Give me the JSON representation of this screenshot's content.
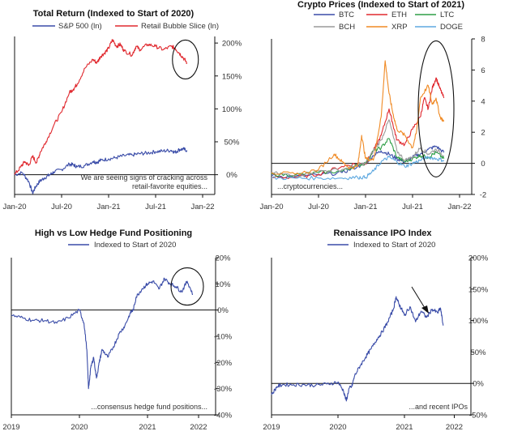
{
  "colors": {
    "blue": "#3A4CA8",
    "red": "#E0282E",
    "green": "#2E9E47",
    "gray": "#9A9A9A",
    "orange": "#F08A24",
    "lightblue": "#5EA8E0",
    "axis": "#111111"
  },
  "chart_data": [
    {
      "id": "total-return",
      "type": "line",
      "title": "Total Return (Indexed to Start of 2020)",
      "legend": [
        "S&P 500 (ln)",
        "Retail Bubble Slice (ln)"
      ],
      "y_axis_side": "right",
      "ylim": [
        -30,
        210
      ],
      "ytick_values": [
        0,
        50,
        100,
        150,
        200
      ],
      "ytick_labels": [
        "0%",
        "50%",
        "100%",
        "150%",
        "200%"
      ],
      "xtick_labels": [
        "Jan-20",
        "Jul-20",
        "Jan-21",
        "Jul-21",
        "Jan-22"
      ],
      "xlim": [
        0,
        24
      ],
      "xtick_positions": [
        0,
        6,
        12,
        18,
        24
      ],
      "annotation": "We are seeing signs of cracking across retail-favorite equities...",
      "highlight": {
        "shape": "ellipse",
        "x": 21.8,
        "y": 175
      },
      "series": [
        {
          "name": "S&P 500 (ln)",
          "color": "blue",
          "x": [
            0,
            1,
            1.8,
            2.3,
            2.7,
            3.2,
            3.8,
            4.5,
            5,
            6,
            7,
            7.5,
            8,
            9,
            10,
            10.5,
            11,
            12,
            13,
            14,
            15,
            16,
            17,
            18,
            19,
            20,
            20.5,
            21,
            21.5,
            22
          ],
          "y": [
            0,
            3,
            -10,
            -28,
            -18,
            -10,
            -5,
            0,
            4,
            8,
            16,
            15,
            12,
            14,
            20,
            19,
            22,
            24,
            26,
            29,
            30,
            32,
            33,
            35,
            36,
            37,
            34,
            38,
            39,
            37
          ]
        },
        {
          "name": "Retail Bubble Slice (ln)",
          "color": "red",
          "x": [
            0,
            0.8,
            1.3,
            1.8,
            2.3,
            2.8,
            3.3,
            4,
            5,
            6,
            7,
            7.5,
            8,
            9,
            10,
            10.5,
            11,
            11.5,
            12,
            12.5,
            13,
            13.5,
            14,
            15,
            15.5,
            16,
            17,
            18,
            19,
            20,
            20.5,
            21,
            21.5,
            22
          ],
          "y": [
            0,
            12,
            20,
            14,
            28,
            18,
            35,
            50,
            75,
            95,
            125,
            130,
            138,
            162,
            175,
            170,
            180,
            185,
            192,
            205,
            195,
            198,
            188,
            182,
            195,
            190,
            198,
            195,
            190,
            195,
            192,
            185,
            178,
            170
          ]
        }
      ]
    },
    {
      "id": "crypto-prices",
      "type": "line",
      "title": "Crypto Prices (Indexed to Start of 2021)",
      "legend": [
        "BTC",
        "ETH",
        "LTC",
        "BCH",
        "XRP",
        "DOGE"
      ],
      "y_axis_side": "right",
      "ylim": [
        -2,
        8
      ],
      "ytick_values": [
        -2,
        0,
        2,
        4,
        6,
        8
      ],
      "ytick_labels": [
        "-2",
        "0",
        "2",
        "4",
        "6",
        "8"
      ],
      "xtick_labels": [
        "Jan-20",
        "Jul-20",
        "Jan-21",
        "Jul-21",
        "Jan-22"
      ],
      "xlim": [
        0,
        24
      ],
      "xtick_positions": [
        0,
        6,
        12,
        18,
        24
      ],
      "annotation": "...cryptocurrencies...",
      "highlight": {
        "shape": "ellipse",
        "x": 21,
        "y": 3.5
      },
      "series": [
        {
          "name": "BTC",
          "color": "blue",
          "x": [
            0,
            3,
            6,
            9,
            11,
            12,
            13,
            14,
            15,
            16,
            17,
            18,
            19,
            20,
            21,
            22
          ],
          "y": [
            -0.8,
            -0.85,
            -0.75,
            -0.6,
            -0.2,
            0,
            0.5,
            0.8,
            0.6,
            0.3,
            0.1,
            0.4,
            0.6,
            0.9,
            1.1,
            0.7
          ]
        },
        {
          "name": "ETH",
          "color": "red",
          "x": [
            0,
            3,
            6,
            9,
            11,
            12,
            13,
            14,
            15,
            15.5,
            16,
            17,
            18,
            19,
            19.5,
            20,
            20.5,
            21,
            21.5,
            22
          ],
          "y": [
            -0.9,
            -0.9,
            -0.7,
            -0.2,
            0,
            0,
            0.8,
            1.8,
            3.5,
            2.5,
            1.5,
            1.2,
            2.2,
            3.0,
            4.2,
            3.5,
            4.8,
            5.5,
            4.8,
            4.2
          ]
        },
        {
          "name": "LTC",
          "color": "green",
          "x": [
            0,
            3,
            6,
            9,
            11,
            12,
            13,
            14,
            15,
            16,
            17,
            18,
            19,
            20,
            21,
            22
          ],
          "y": [
            -0.7,
            -0.75,
            -0.6,
            -0.5,
            -0.1,
            0,
            0.8,
            1.0,
            1.6,
            0.4,
            0.1,
            0.3,
            0.5,
            0.4,
            0.7,
            0.3
          ]
        },
        {
          "name": "BCH",
          "color": "gray",
          "x": [
            0,
            3,
            6,
            9,
            11,
            12,
            13,
            14,
            15,
            16,
            17,
            18,
            19,
            20,
            21,
            22
          ],
          "y": [
            -0.6,
            -0.8,
            -0.5,
            -0.4,
            -0.1,
            0,
            0.8,
            1.5,
            2.8,
            0.8,
            0.2,
            0.4,
            1.0,
            0.6,
            0.9,
            0.5
          ]
        },
        {
          "name": "XRP",
          "color": "orange",
          "x": [
            0,
            3,
            6,
            8,
            9,
            10,
            11,
            11.5,
            12,
            13,
            14,
            14.5,
            15,
            15.5,
            16,
            17,
            18,
            18.5,
            19,
            20,
            20.5,
            21,
            21.5,
            22
          ],
          "y": [
            -0.6,
            -0.7,
            -0.4,
            0.6,
            0.1,
            -0.3,
            -0.2,
            1.8,
            0.3,
            0.2,
            3.0,
            6.6,
            4.5,
            3.2,
            2.2,
            1.8,
            1.0,
            2.0,
            4.2,
            5.0,
            3.8,
            4.2,
            3.0,
            2.7
          ]
        },
        {
          "name": "DOGE",
          "color": "lightblue",
          "x": [
            0,
            3,
            6,
            9,
            11,
            12,
            13,
            14,
            15,
            16,
            17,
            18,
            19,
            20,
            21,
            22
          ],
          "y": [
            -0.95,
            -0.95,
            -0.95,
            -0.95,
            -0.9,
            -0.9,
            -0.5,
            0.1,
            0.4,
            0.1,
            -0.2,
            0.0,
            0.2,
            0.4,
            0.3,
            0.2
          ]
        }
      ]
    },
    {
      "id": "hedge-fund-positioning",
      "type": "line",
      "title": "High vs Low Hedge Fund Positioning",
      "legend": [
        "Indexed to Start of 2020"
      ],
      "y_axis_side": "right",
      "ylim": [
        -40,
        20
      ],
      "ytick_values": [
        -40,
        -30,
        -20,
        -10,
        0,
        10,
        20
      ],
      "ytick_labels": [
        "-40%",
        "-30%",
        "-20%",
        "-10%",
        "0%",
        "10%",
        "20%"
      ],
      "xtick_labels": [
        "2019",
        "2020",
        "2021",
        "2022"
      ],
      "xlim": [
        0,
        36
      ],
      "xtick_positions": [
        0,
        12,
        24,
        33
      ],
      "annotation": "...consensus hedge fund positions...",
      "highlight": {
        "shape": "ellipse",
        "x": 31,
        "y": 9
      },
      "series": [
        {
          "name": "Indexed to Start of 2020",
          "color": "blue",
          "x": [
            0,
            2,
            4,
            6,
            8,
            10,
            12,
            12.8,
            13.3,
            13.6,
            14,
            14.5,
            15,
            15.5,
            16,
            17,
            18,
            19,
            20,
            21,
            21.5,
            22,
            23,
            24,
            25,
            26,
            27,
            28,
            29,
            30,
            31,
            32
          ],
          "y": [
            -2,
            -3,
            -4,
            -4,
            -5,
            -3,
            0,
            -5,
            -15,
            -30,
            -22,
            -18,
            -26,
            -20,
            -15,
            -18,
            -14,
            -9,
            -6,
            -1,
            0,
            5,
            8,
            10,
            11,
            8,
            12,
            10,
            9,
            7,
            11,
            6
          ]
        }
      ]
    },
    {
      "id": "renaissance-ipo",
      "type": "line",
      "title": "Renaissance IPO Index",
      "legend": [
        "Indexed to Start of 2020"
      ],
      "y_axis_side": "right",
      "ylim": [
        -50,
        200
      ],
      "ytick_values": [
        -50,
        0,
        50,
        100,
        150,
        200
      ],
      "ytick_labels": [
        "-50%",
        "0%",
        "50%",
        "100%",
        "150%",
        "200%"
      ],
      "xtick_labels": [
        "2019",
        "2020",
        "2021",
        "2022"
      ],
      "xlim": [
        0,
        36
      ],
      "xtick_positions": [
        0,
        12,
        24,
        33
      ],
      "annotation": "...and recent IPOs",
      "series": [
        {
          "name": "Indexed to Start of 2020",
          "color": "blue",
          "x": [
            0,
            1,
            2,
            4,
            6,
            8,
            10,
            12,
            13,
            13.5,
            14,
            14.5,
            15,
            16,
            17,
            18,
            19,
            20,
            21,
            22,
            22.5,
            23,
            23.5,
            24,
            25,
            26,
            27,
            28,
            29,
            30,
            30.5,
            31
          ],
          "y": [
            -18,
            -5,
            -2,
            -2,
            -2,
            -3,
            -1,
            2,
            -12,
            -28,
            -8,
            -5,
            12,
            28,
            42,
            55,
            70,
            82,
            98,
            118,
            138,
            126,
            118,
            108,
            122,
            98,
            115,
            105,
            118,
            112,
            120,
            92
          ]
        }
      ]
    }
  ]
}
